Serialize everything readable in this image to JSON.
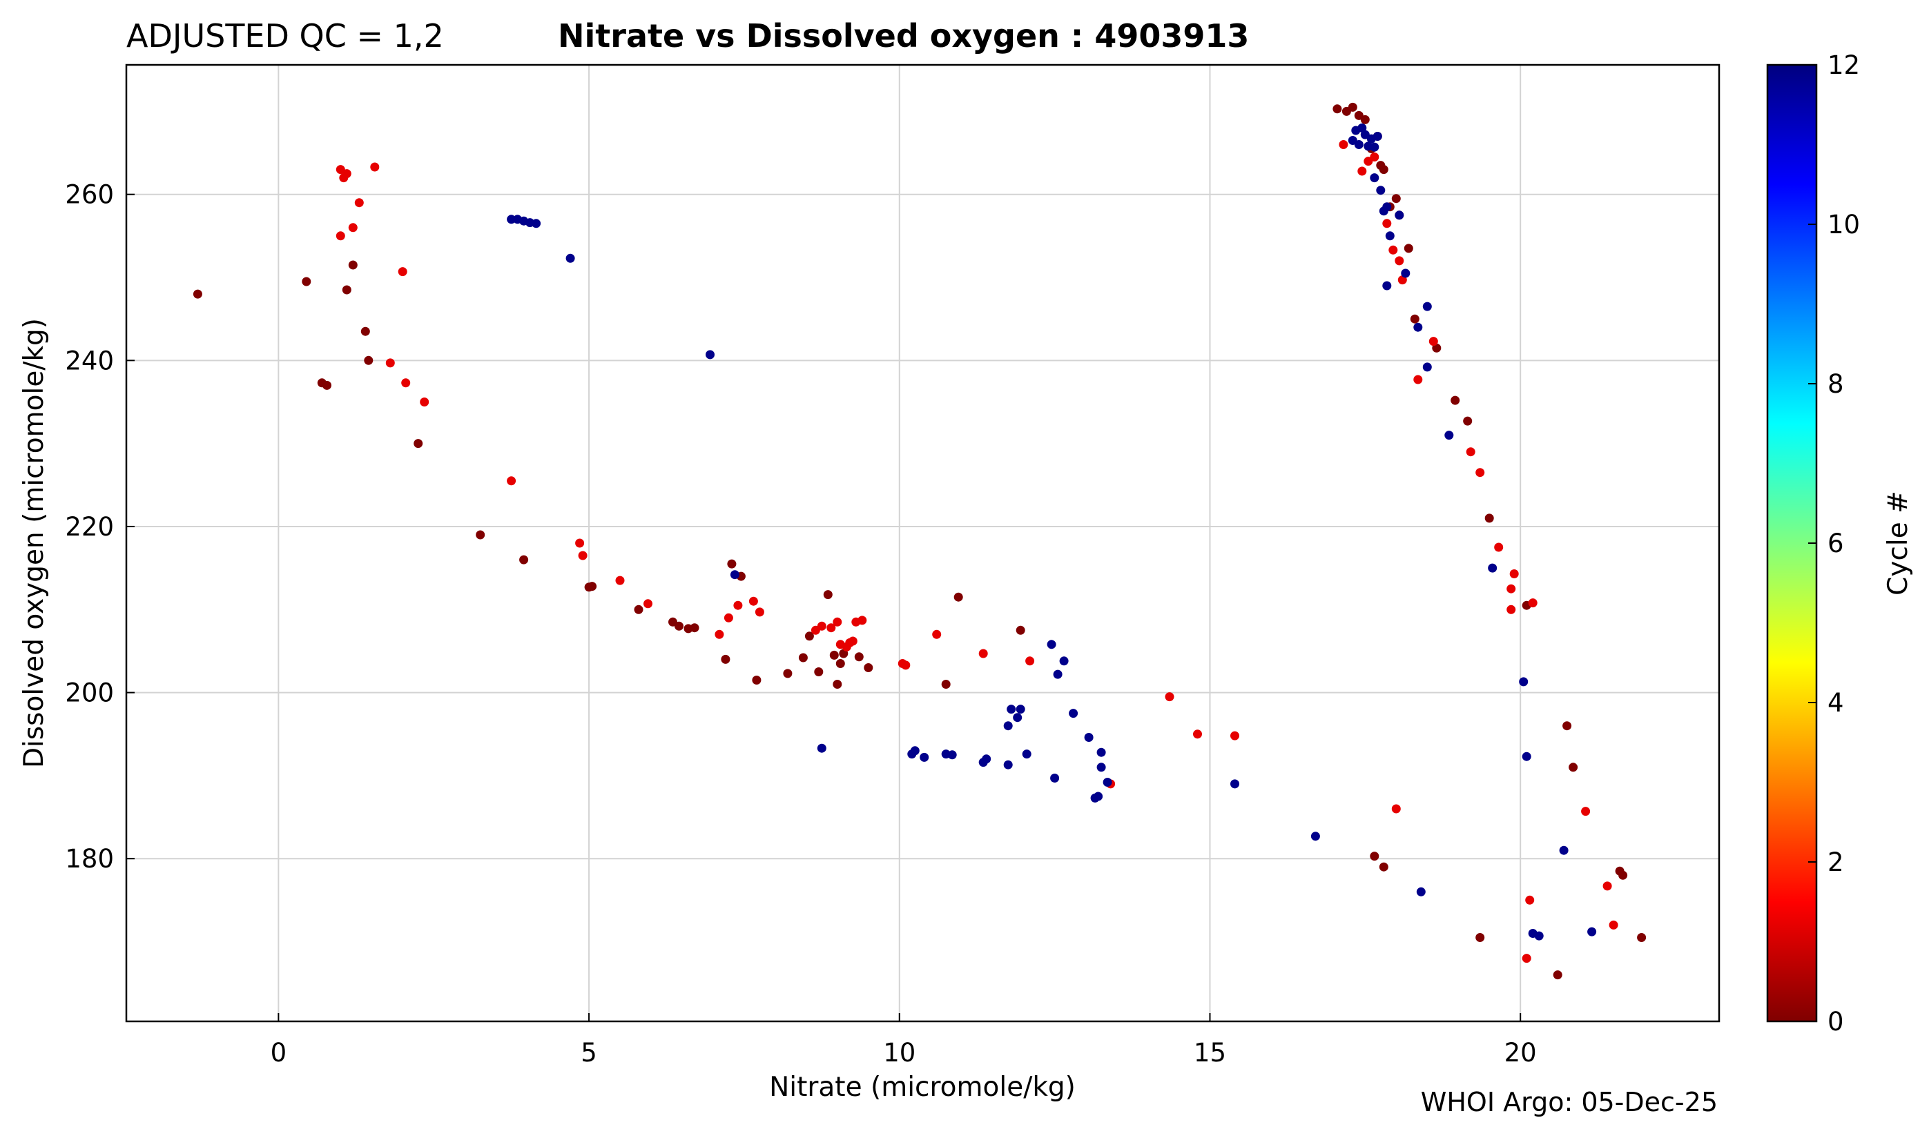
{
  "chart_data": {
    "type": "scatter",
    "title_prefix": "ADJUSTED QC = 1,2",
    "title": "Nitrate vs Dissolved oxygen : 4903913",
    "xlabel": "Nitrate  (micromole/kg)",
    "ylabel": "Dissolved oxygen  (micromole/kg)",
    "xlim": [
      -2.45,
      23.2
    ],
    "ylim": [
      160.4,
      275.6
    ],
    "xticks": [
      0,
      5,
      10,
      15,
      20
    ],
    "yticks": [
      180,
      200,
      220,
      240,
      260
    ],
    "grid": true,
    "colorbar": {
      "label": "Cycle #",
      "min": 0,
      "max": 12,
      "ticks": [
        0,
        2,
        4,
        6,
        8,
        10,
        12
      ],
      "colormap": "jet",
      "colors": [
        "#800000",
        "#ff0000",
        "#ff8000",
        "#ffff00",
        "#80ff80",
        "#00ffff",
        "#0080ff",
        "#0000ff",
        "#000080"
      ]
    },
    "credit": "WHOI Argo: 05-Dec-25",
    "series": [
      {
        "name": "cycle 0",
        "cycle": 0,
        "color": "#800000",
        "points": [
          [
            -1.3,
            248
          ],
          [
            0.45,
            249.5
          ],
          [
            0.7,
            237.3
          ],
          [
            0.78,
            237
          ],
          [
            1.1,
            248.5
          ],
          [
            1.2,
            251.5
          ],
          [
            1.4,
            243.5
          ],
          [
            1.45,
            240
          ],
          [
            2.25,
            230
          ],
          [
            3.25,
            219
          ],
          [
            3.95,
            216
          ],
          [
            5.0,
            212.7
          ],
          [
            5.05,
            212.8
          ],
          [
            5.8,
            210
          ],
          [
            6.35,
            208.5
          ],
          [
            6.45,
            208
          ],
          [
            6.6,
            207.7
          ],
          [
            6.7,
            207.8
          ],
          [
            7.2,
            204
          ],
          [
            7.3,
            215.5
          ],
          [
            7.45,
            214
          ],
          [
            7.7,
            201.5
          ],
          [
            8.2,
            202.3
          ],
          [
            8.45,
            204.2
          ],
          [
            8.55,
            206.8
          ],
          [
            8.7,
            202.5
          ],
          [
            8.85,
            211.8
          ],
          [
            8.95,
            204.5
          ],
          [
            9.0,
            201
          ],
          [
            9.05,
            203.5
          ],
          [
            9.1,
            204.7
          ],
          [
            9.35,
            204.3
          ],
          [
            9.5,
            203
          ],
          [
            10.75,
            201
          ],
          [
            10.95,
            211.5
          ],
          [
            11.95,
            207.5
          ],
          [
            17.05,
            270.3
          ],
          [
            17.2,
            270
          ],
          [
            17.3,
            270.5
          ],
          [
            17.4,
            269.5
          ],
          [
            17.5,
            269
          ],
          [
            17.6,
            265.5
          ],
          [
            17.7,
            267
          ],
          [
            17.75,
            263.5
          ],
          [
            17.8,
            263
          ],
          [
            17.9,
            258.5
          ],
          [
            18.0,
            259.5
          ],
          [
            18.05,
            257.5
          ],
          [
            18.2,
            253.5
          ],
          [
            18.3,
            245
          ],
          [
            18.65,
            241.5
          ],
          [
            18.95,
            235.2
          ],
          [
            19.15,
            232.7
          ],
          [
            19.5,
            221
          ],
          [
            20.1,
            210.5
          ],
          [
            20.75,
            196
          ],
          [
            20.85,
            191
          ],
          [
            17.65,
            180.3
          ],
          [
            17.8,
            179
          ],
          [
            19.35,
            170.5
          ],
          [
            20.6,
            166
          ],
          [
            21.6,
            178.5
          ],
          [
            21.65,
            178
          ],
          [
            21.95,
            170.5
          ]
        ]
      },
      {
        "name": "cycle 1",
        "cycle": 1,
        "color": "#e60000",
        "points": [
          [
            1.0,
            263
          ],
          [
            1.05,
            262
          ],
          [
            1.1,
            262.5
          ],
          [
            1.0,
            255
          ],
          [
            1.2,
            256
          ],
          [
            1.3,
            259
          ],
          [
            1.55,
            263.3
          ],
          [
            2.0,
            250.7
          ],
          [
            1.8,
            239.7
          ],
          [
            2.05,
            237.3
          ],
          [
            2.35,
            235
          ],
          [
            3.75,
            225.5
          ],
          [
            4.85,
            218
          ],
          [
            4.9,
            216.5
          ],
          [
            5.5,
            213.5
          ],
          [
            5.95,
            210.7
          ],
          [
            7.25,
            209
          ],
          [
            7.4,
            210.5
          ],
          [
            7.65,
            211
          ],
          [
            7.75,
            209.7
          ],
          [
            7.1,
            207
          ],
          [
            8.65,
            207.5
          ],
          [
            8.75,
            208
          ],
          [
            8.9,
            207.8
          ],
          [
            9.0,
            208.5
          ],
          [
            9.05,
            205.8
          ],
          [
            9.15,
            205.5
          ],
          [
            9.2,
            206
          ],
          [
            9.25,
            206.2
          ],
          [
            9.3,
            208.5
          ],
          [
            9.4,
            208.7
          ],
          [
            10.05,
            203.5
          ],
          [
            10.1,
            203.3
          ],
          [
            10.6,
            207
          ],
          [
            11.35,
            204.7
          ],
          [
            12.1,
            203.8
          ],
          [
            13.4,
            189
          ],
          [
            14.35,
            199.5
          ],
          [
            14.8,
            195
          ],
          [
            15.4,
            194.8
          ],
          [
            17.15,
            266
          ],
          [
            17.45,
            262.8
          ],
          [
            17.55,
            264
          ],
          [
            17.65,
            264.5
          ],
          [
            17.85,
            256.5
          ],
          [
            17.95,
            253.3
          ],
          [
            18.05,
            252
          ],
          [
            18.1,
            249.7
          ],
          [
            18.35,
            237.7
          ],
          [
            18.6,
            242.3
          ],
          [
            19.2,
            229
          ],
          [
            19.35,
            226.5
          ],
          [
            19.65,
            217.5
          ],
          [
            19.9,
            214.3
          ],
          [
            19.85,
            210
          ],
          [
            19.85,
            212.5
          ],
          [
            20.2,
            210.8
          ],
          [
            20.15,
            175
          ],
          [
            20.1,
            168
          ],
          [
            21.05,
            185.7
          ],
          [
            21.4,
            176.7
          ],
          [
            21.5,
            172
          ],
          [
            18.0,
            186
          ]
        ]
      },
      {
        "name": "cycle 12",
        "cycle": 12,
        "color": "#00008b",
        "points": [
          [
            3.75,
            257
          ],
          [
            3.85,
            257
          ],
          [
            3.95,
            256.8
          ],
          [
            4.05,
            256.6
          ],
          [
            4.15,
            256.5
          ],
          [
            4.7,
            252.3
          ],
          [
            6.95,
            240.7
          ],
          [
            7.35,
            214.2
          ],
          [
            8.75,
            193.3
          ],
          [
            10.2,
            192.6
          ],
          [
            10.25,
            193
          ],
          [
            10.4,
            192.2
          ],
          [
            10.75,
            192.6
          ],
          [
            10.85,
            192.5
          ],
          [
            11.35,
            191.6
          ],
          [
            11.4,
            192
          ],
          [
            11.75,
            191.3
          ],
          [
            11.75,
            196
          ],
          [
            11.8,
            198
          ],
          [
            11.9,
            197
          ],
          [
            11.95,
            198
          ],
          [
            12.05,
            192.6
          ],
          [
            12.45,
            205.8
          ],
          [
            12.5,
            189.7
          ],
          [
            12.55,
            202.2
          ],
          [
            12.65,
            203.8
          ],
          [
            12.8,
            197.5
          ],
          [
            13.05,
            194.6
          ],
          [
            13.15,
            187.3
          ],
          [
            13.2,
            187.5
          ],
          [
            13.25,
            191
          ],
          [
            13.25,
            192.8
          ],
          [
            13.35,
            189.2
          ],
          [
            15.4,
            189
          ],
          [
            16.7,
            182.7
          ],
          [
            17.3,
            266.5
          ],
          [
            17.35,
            267.7
          ],
          [
            17.4,
            266
          ],
          [
            17.45,
            268
          ],
          [
            17.5,
            267.2
          ],
          [
            17.55,
            265.8
          ],
          [
            17.6,
            266.7
          ],
          [
            17.65,
            265.7
          ],
          [
            17.7,
            267
          ],
          [
            17.65,
            262
          ],
          [
            17.75,
            260.5
          ],
          [
            17.8,
            258
          ],
          [
            17.85,
            258.5
          ],
          [
            17.9,
            255
          ],
          [
            18.05,
            257.5
          ],
          [
            18.15,
            250.5
          ],
          [
            17.85,
            249
          ],
          [
            18.35,
            244
          ],
          [
            18.5,
            246.5
          ],
          [
            18.5,
            239.2
          ],
          [
            18.85,
            231
          ],
          [
            19.55,
            215
          ],
          [
            20.05,
            201.3
          ],
          [
            20.1,
            192.3
          ],
          [
            20.7,
            181
          ],
          [
            20.2,
            171
          ],
          [
            20.3,
            170.7
          ],
          [
            21.15,
            171.2
          ],
          [
            18.4,
            176
          ]
        ]
      }
    ]
  }
}
